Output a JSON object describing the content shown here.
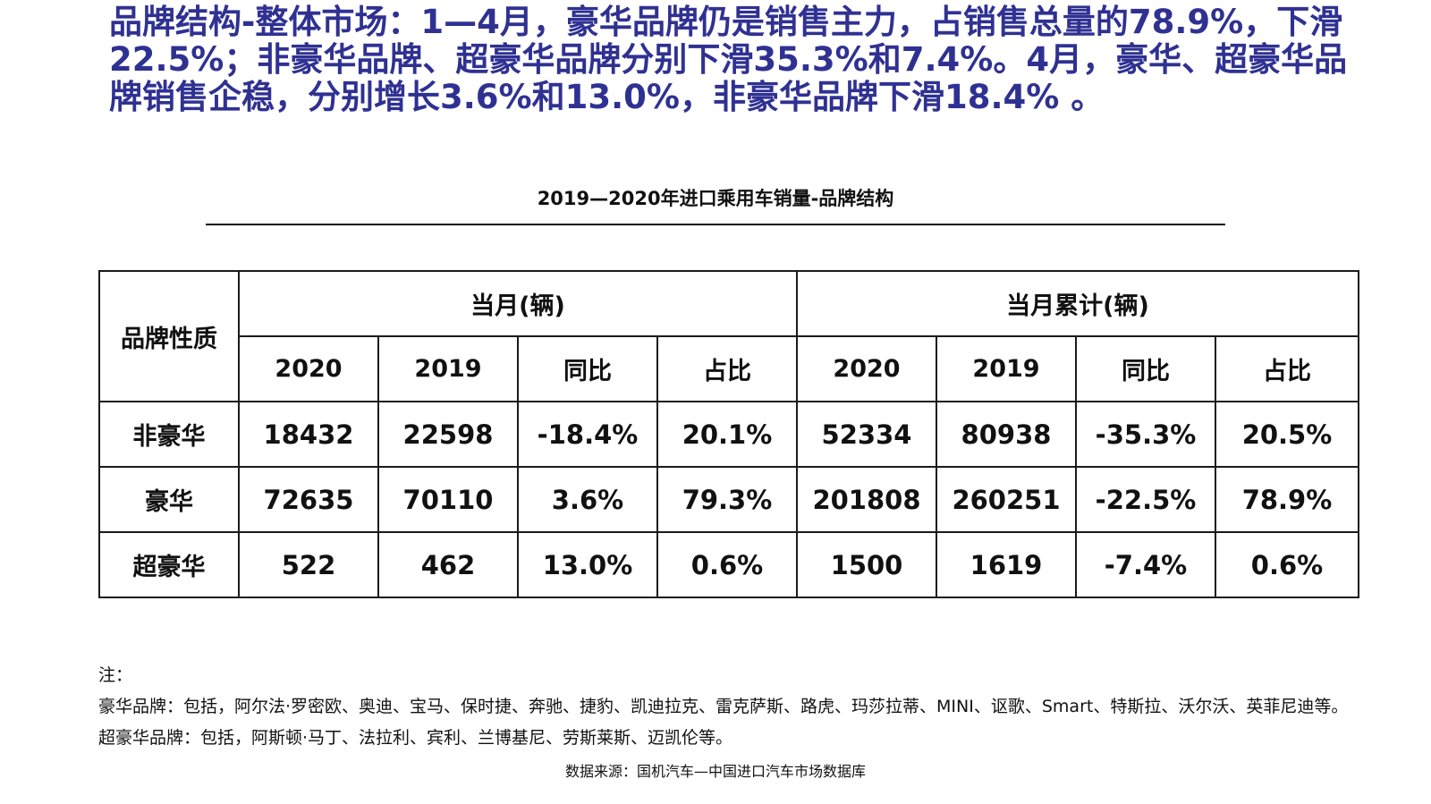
{
  "headline": "品牌结构-整体市场：1—4月，豪华品牌仍是销售主力，占销售总量的78.9%，下滑22.5%；非豪华品牌、超豪华品牌分别下滑35.3%和7.4%。4月，豪华、超豪华品牌销售企稳，分别增长3.6%和13.0%，非豪华品牌下滑18.4% 。",
  "table_title": "2019—2020年进口乘用车销量-品牌结构",
  "table": {
    "corner_header": "品牌性质",
    "group_headers": [
      "当月(辆)",
      "当月累计(辆)"
    ],
    "sub_headers": [
      "2020",
      "2019",
      "同比",
      "占比",
      "2020",
      "2019",
      "同比",
      "占比"
    ],
    "rows": [
      {
        "label": "非豪华",
        "cells": [
          "18432",
          "22598",
          "-18.4%",
          "20.1%",
          "52334",
          "80938",
          "-35.3%",
          "20.5%"
        ]
      },
      {
        "label": "豪华",
        "cells": [
          "72635",
          "70110",
          "3.6%",
          "79.3%",
          "201808",
          "260251",
          "-22.5%",
          "78.9%"
        ]
      },
      {
        "label": "超豪华",
        "cells": [
          "522",
          "462",
          "13.0%",
          "0.6%",
          "1500",
          "1619",
          "-7.4%",
          "0.6%"
        ]
      }
    ]
  },
  "notes": [
    "注：",
    "豪华品牌：包括，阿尔法·罗密欧、奥迪、宝马、保时捷、奔驰、捷豹、凯迪拉克、雷克萨斯、路虎、玛莎拉蒂、MINI、讴歌、Smart、特斯拉、沃尔沃、英菲尼迪等。",
    "超豪华品牌：包括，阿斯顿·马丁、法拉利、宾利、兰博基尼、劳斯莱斯、迈凯伦等。"
  ],
  "source": "数据来源：国机汽车—中国进口汽车市场数据库",
  "colors": {
    "headline": "#2f3192",
    "text": "#111111",
    "border": "#1a1a1a"
  }
}
